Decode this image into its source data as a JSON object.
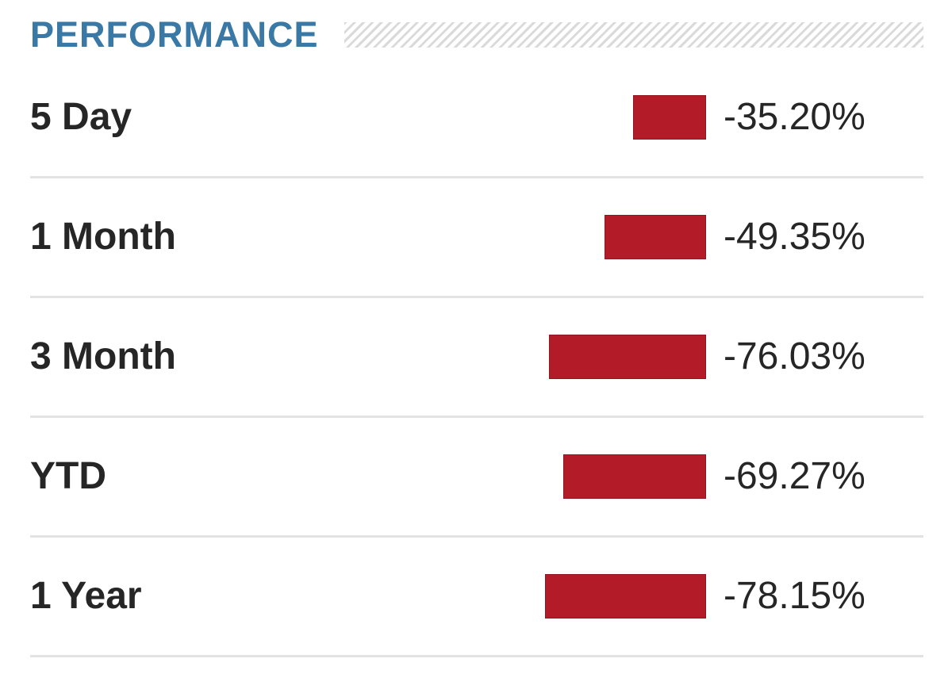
{
  "header": {
    "title": "PERFORMANCE"
  },
  "colors": {
    "title": "#3a79a6",
    "negative_bar": "#b21b27",
    "text": "#262626",
    "divider": "#e3e3e3"
  },
  "rows": [
    {
      "label": "5 Day",
      "value": "-35.20%"
    },
    {
      "label": "1 Month",
      "value": "-49.35%"
    },
    {
      "label": "3 Month",
      "value": "-76.03%"
    },
    {
      "label": "YTD",
      "value": "-69.27%"
    },
    {
      "label": "1 Year",
      "value": "-78.15%"
    }
  ],
  "chart_data": {
    "type": "bar",
    "title": "PERFORMANCE",
    "categories": [
      "5 Day",
      "1 Month",
      "3 Month",
      "YTD",
      "1 Year"
    ],
    "values": [
      -35.2,
      -49.35,
      -76.03,
      -69.27,
      -78.15
    ],
    "xlabel": "",
    "ylabel": "",
    "orientation": "horizontal",
    "grid": false
  }
}
